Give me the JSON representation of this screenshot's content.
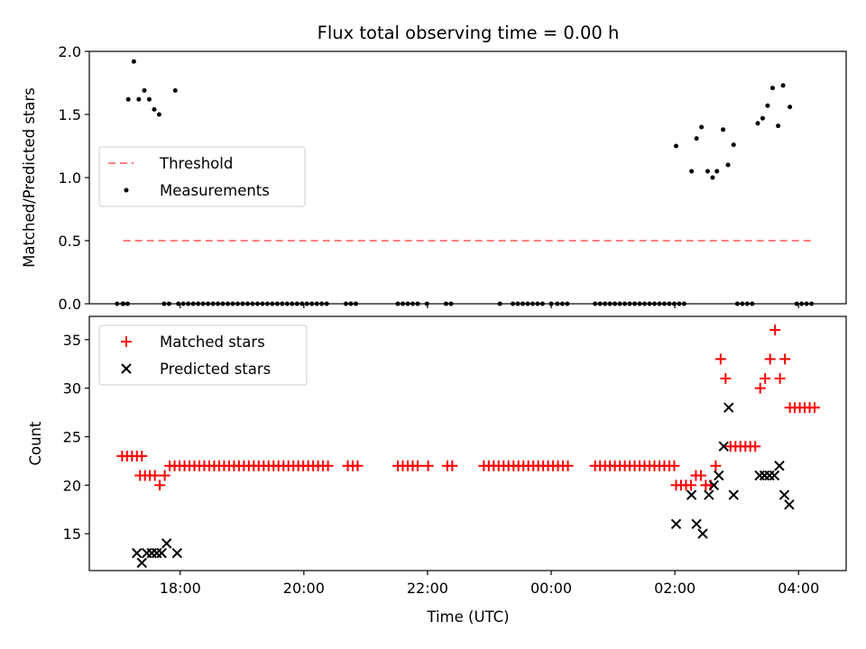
{
  "figure": {
    "title": "Flux total observing time = 0.00 h",
    "xlabel": "Time (UTC)"
  },
  "colors": {
    "threshold": "#ff7f7f",
    "measurements": "#000000",
    "matched": "#ff0000",
    "predicted": "#000000"
  },
  "chart_data": [
    {
      "type": "scatter",
      "ylabel": "Matched/Predicted stars",
      "x_unit": "hours_utc",
      "xlim": [
        16.53,
        28.77
      ],
      "ylim": [
        0,
        2.0
      ],
      "yticks": [
        0.0,
        0.5,
        1.0,
        1.5,
        2.0
      ],
      "ytick_labels": [
        "0.0",
        "0.5",
        "1.0",
        "1.5",
        "2.0"
      ],
      "xticks": [
        18,
        20,
        22,
        24,
        26,
        28
      ],
      "xtick_labels": [
        "18:00",
        "20:00",
        "22:00",
        "00:00",
        "02:00",
        "04:00"
      ],
      "xtick_labels_visible": false,
      "legend": {
        "position": "center-left",
        "entries": [
          "Threshold",
          "Measurements"
        ]
      },
      "series": [
        {
          "name": "Threshold",
          "style": "dashed-line",
          "x": [
            17.08,
            28.22
          ],
          "y": [
            0.5,
            0.5
          ]
        },
        {
          "name": "Measurements",
          "style": "dot",
          "x": [
            17.08,
            17.16,
            17.25,
            17.33,
            17.42,
            17.5,
            17.58,
            17.66,
            17.74,
            17.92,
            26.02,
            26.27,
            26.35,
            26.43,
            26.53,
            26.61,
            26.68,
            26.78,
            26.86,
            26.95,
            27.34,
            27.42,
            27.5,
            27.58,
            27.67,
            27.75,
            27.86
          ],
          "y": [
            0,
            1.62,
            1.92,
            1.62,
            1.69,
            1.62,
            1.54,
            1.5,
            0,
            1.69,
            1.25,
            1.05,
            1.31,
            1.4,
            1.05,
            1.0,
            1.05,
            1.38,
            1.1,
            1.26,
            1.43,
            1.47,
            1.57,
            1.71,
            1.41,
            1.73,
            1.56
          ]
        },
        {
          "name": "Measurements (zero)",
          "style": "dot",
          "x": [
            16.98,
            17.07,
            17.15,
            17.82,
            17.97,
            18.05,
            18.13,
            18.21,
            18.29,
            18.37,
            18.45,
            18.53,
            18.61,
            18.69,
            18.77,
            18.85,
            18.93,
            19.01,
            19.09,
            19.17,
            19.25,
            19.33,
            19.41,
            19.49,
            19.57,
            19.65,
            19.73,
            19.81,
            19.89,
            19.97,
            20.05,
            20.13,
            20.21,
            20.29,
            20.37,
            20.68,
            20.76,
            20.84,
            21.52,
            21.6,
            21.68,
            21.76,
            21.84,
            21.99,
            22.3,
            22.38,
            23.17,
            23.38,
            23.46,
            23.54,
            23.62,
            23.7,
            23.78,
            23.86,
            24.0,
            24.1,
            24.18,
            24.26,
            24.71,
            24.79,
            24.87,
            24.95,
            25.03,
            25.11,
            25.19,
            25.27,
            25.35,
            25.43,
            25.51,
            25.59,
            25.67,
            25.75,
            25.83,
            25.91,
            25.99,
            26.07,
            26.15,
            27.01,
            27.09,
            27.17,
            27.25,
            27.97,
            28.05,
            28.13,
            28.21
          ],
          "y": [
            0,
            0,
            0,
            0,
            0,
            0,
            0,
            0,
            0,
            0,
            0,
            0,
            0,
            0,
            0,
            0,
            0,
            0,
            0,
            0,
            0,
            0,
            0,
            0,
            0,
            0,
            0,
            0,
            0,
            0,
            0,
            0,
            0,
            0,
            0,
            0,
            0,
            0,
            0,
            0,
            0,
            0,
            0,
            0,
            0,
            0,
            0,
            0,
            0,
            0,
            0,
            0,
            0,
            0,
            0,
            0,
            0,
            0,
            0,
            0,
            0,
            0,
            0,
            0,
            0,
            0,
            0,
            0,
            0,
            0,
            0,
            0,
            0,
            0,
            0,
            0,
            0,
            0,
            0,
            0,
            0,
            0,
            0,
            0,
            0
          ]
        }
      ]
    },
    {
      "type": "scatter",
      "ylabel": "Count",
      "x_unit": "hours_utc",
      "xlim": [
        16.53,
        28.77
      ],
      "ylim": [
        11.2,
        37.4
      ],
      "yticks": [
        15,
        20,
        25,
        30,
        35
      ],
      "ytick_labels": [
        "15",
        "20",
        "25",
        "30",
        "35"
      ],
      "xticks": [
        18,
        20,
        22,
        24,
        26,
        28
      ],
      "xtick_labels": [
        "18:00",
        "20:00",
        "22:00",
        "00:00",
        "02:00",
        "04:00"
      ],
      "legend": {
        "position": "top-left",
        "entries": [
          "Matched stars",
          "Predicted stars"
        ]
      },
      "series": [
        {
          "name": "Matched stars",
          "style": "plus",
          "x": [
            17.35,
            17.43,
            17.51,
            17.59,
            17.67,
            17.75,
            17.83,
            17.91,
            17.99,
            18.07,
            18.15,
            18.23,
            18.31,
            18.39,
            18.47,
            18.55,
            18.63,
            18.71,
            18.79,
            18.87,
            18.95,
            19.03,
            19.11,
            19.19,
            19.27,
            19.35,
            19.43,
            19.51,
            19.59,
            19.67,
            19.75,
            19.83,
            19.91,
            19.99,
            20.07,
            20.15,
            20.23,
            20.31,
            20.39,
            20.71,
            20.79,
            20.87,
            21.52,
            21.6,
            21.68,
            21.76,
            21.84,
            22.01,
            22.32,
            22.4,
            22.91,
            22.99,
            23.07,
            23.15,
            23.23,
            23.31,
            23.39,
            23.47,
            23.55,
            23.63,
            23.71,
            23.79,
            23.87,
            23.95,
            24.03,
            24.11,
            24.19,
            24.27,
            24.71,
            24.79,
            24.87,
            24.95,
            25.03,
            25.11,
            25.19,
            25.27,
            25.35,
            25.43,
            25.51,
            25.59,
            25.67,
            25.75,
            25.83,
            25.91,
            25.99,
            26.02,
            26.1,
            26.18,
            26.26,
            26.34,
            26.42,
            26.5,
            26.58,
            26.66,
            26.74,
            26.82,
            26.9,
            26.98,
            27.06,
            27.14,
            27.22,
            27.3,
            27.38,
            27.46,
            27.54,
            27.62,
            27.7,
            27.78,
            27.86,
            27.94,
            28.02,
            28.1,
            28.18,
            28.26,
            17.06,
            17.14,
            17.22,
            17.3,
            17.38
          ],
          "y": [
            21,
            21,
            21,
            21,
            20,
            21,
            22,
            22,
            22,
            22,
            22,
            22,
            22,
            22,
            22,
            22,
            22,
            22,
            22,
            22,
            22,
            22,
            22,
            22,
            22,
            22,
            22,
            22,
            22,
            22,
            22,
            22,
            22,
            22,
            22,
            22,
            22,
            22,
            22,
            22,
            22,
            22,
            22,
            22,
            22,
            22,
            22,
            22,
            22,
            22,
            22,
            22,
            22,
            22,
            22,
            22,
            22,
            22,
            22,
            22,
            22,
            22,
            22,
            22,
            22,
            22,
            22,
            22,
            22,
            22,
            22,
            22,
            22,
            22,
            22,
            22,
            22,
            22,
            22,
            22,
            22,
            22,
            22,
            22,
            22,
            20,
            20,
            20,
            20,
            21,
            21,
            20,
            20,
            22,
            33,
            31,
            24,
            24,
            24,
            24,
            24,
            24,
            30,
            31,
            33,
            36,
            31,
            33,
            28,
            28,
            28,
            28,
            28,
            28,
            23,
            23,
            23,
            23,
            23
          ]
        },
        {
          "name": "Predicted stars",
          "style": "x",
          "x": [
            17.3,
            17.38,
            17.46,
            17.54,
            17.62,
            17.7,
            17.78,
            17.95,
            26.02,
            26.27,
            26.35,
            26.45,
            26.55,
            26.63,
            26.71,
            26.79,
            26.87,
            26.95,
            27.37,
            27.45,
            27.53,
            27.61,
            27.69,
            27.77,
            27.85
          ],
          "y": [
            13,
            12,
            13,
            13,
            13,
            13,
            14,
            13,
            16,
            19,
            16,
            15,
            19,
            20,
            21,
            24,
            28,
            19,
            21,
            21,
            21,
            21,
            22,
            19,
            18
          ]
        }
      ]
    }
  ]
}
